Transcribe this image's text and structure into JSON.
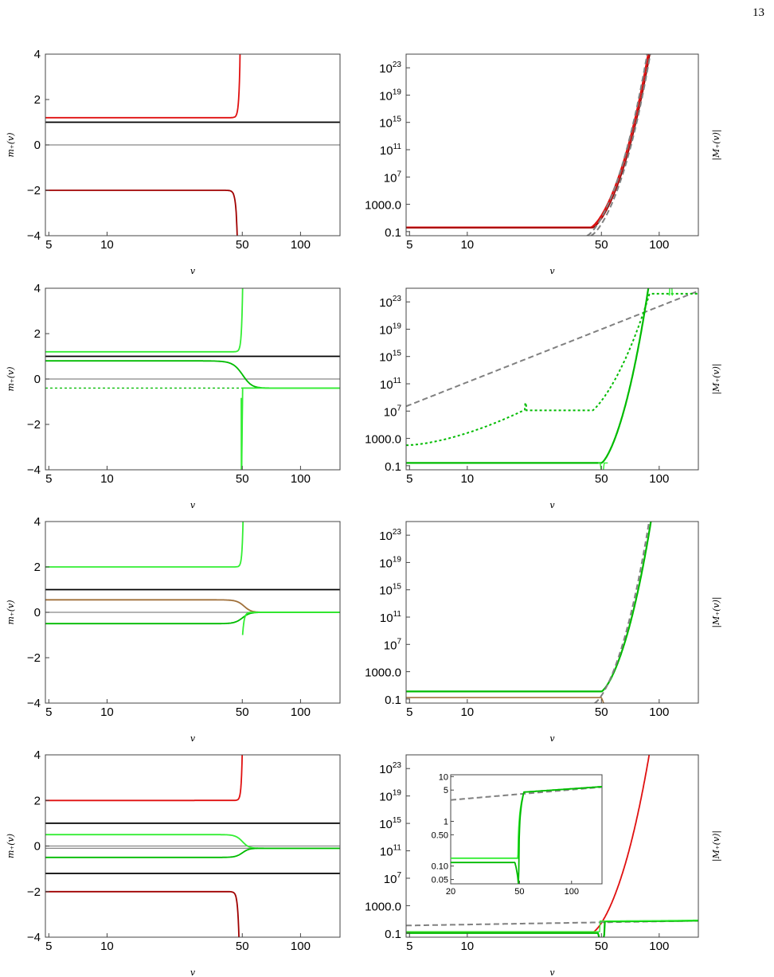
{
  "page_number": "13",
  "colors": {
    "black": "#000000",
    "gray_axis": "#888888",
    "red": "#e01010",
    "dark_red": "#a00000",
    "bright_green": "#33ee33",
    "green": "#00bb00",
    "brown": "#a0703a",
    "dashed_gray": "#808080"
  },
  "chart_data": [
    {
      "id": "row1-left",
      "type": "line",
      "xscale": "log",
      "xlim": [
        4.8,
        160
      ],
      "ylim": [
        -4,
        4
      ],
      "xticks": [
        "5",
        "10",
        "50",
        "100"
      ],
      "yticks": [
        "4",
        "2",
        "0",
        "−2",
        "−4"
      ],
      "xlabel": "v",
      "ylabel": "m₊(v)",
      "series": [
        {
          "color": "red",
          "description": "constant 1.2 until v≈45 then diverges up to +4 at v≈48"
        },
        {
          "color": "black",
          "values": 1.0
        },
        {
          "color": "gray",
          "values": 0.0
        },
        {
          "color": "dark_red",
          "description": "constant −2 until v≈43 then diverges down to −4 at v≈47"
        }
      ]
    },
    {
      "id": "row1-right",
      "type": "line",
      "xscale": "log",
      "yscale": "log",
      "xlim": [
        4.8,
        160
      ],
      "xticks": [
        "5",
        "10",
        "50",
        "100"
      ],
      "yticks": [
        "10^23",
        "10^19",
        "10^15",
        "10^11",
        "10^7",
        "1000.0",
        "0.1"
      ],
      "ylabel": "|M₊(v)|",
      "xlabel": "v",
      "series": [
        {
          "color": "red",
          "description": "≈0.4 flat, rising steeply after v≈45 to 10^25 at v≈120"
        },
        {
          "color": "dark_red"
        },
        {
          "color": "dashed_gray",
          "description": "asymptotic dashed lines"
        }
      ]
    },
    {
      "id": "row2-left",
      "type": "line",
      "xscale": "log",
      "xlim": [
        4.8,
        160
      ],
      "ylim": [
        -4,
        4
      ],
      "xticks": [
        "5",
        "10",
        "50",
        "100"
      ],
      "yticks": [
        "4",
        "2",
        "0",
        "−2",
        "−4"
      ],
      "xlabel": "v",
      "ylabel": "m₊(v)",
      "series": [
        {
          "color": "bright_green",
          "description": "1.2 then up to +4 at v≈49"
        },
        {
          "color": "black",
          "values": 1.0
        },
        {
          "color": "green",
          "description": "0.8 then drops to −0.4 near v≈50"
        },
        {
          "color": "gray",
          "values": 0.0
        },
        {
          "color": "green",
          "style": "dotted",
          "values": -0.4
        },
        {
          "color": "bright_green",
          "description": "from −4 at v≈49 rising to −0.4"
        }
      ]
    },
    {
      "id": "row2-right",
      "type": "line",
      "xscale": "log",
      "yscale": "log",
      "xlim": [
        4.8,
        160
      ],
      "xticks": [
        "5",
        "10",
        "50",
        "100"
      ],
      "yticks": [
        "10^23",
        "10^19",
        "10^15",
        "10^11",
        "10^7",
        "1000.0",
        "0.1"
      ],
      "ylabel": "|M₊(v)|",
      "xlabel": "v",
      "series": [
        {
          "color": "dashed_gray",
          "description": "straight line from ~10^8 at v=5 to ~10^25 at v=160"
        },
        {
          "color": "green",
          "style": "dotted",
          "description": "100 at v=5, peak ~10^8 at v≈20, flat ~10^7 until 45, rising to 10^24 at 120"
        },
        {
          "color": "green",
          "description": "≈0.3 flat until 50, then rising to 10^24"
        },
        {
          "color": "bright_green",
          "description": "spikes near v≈50 and v≈115"
        }
      ]
    },
    {
      "id": "row3-left",
      "type": "line",
      "xscale": "log",
      "xlim": [
        4.8,
        160
      ],
      "ylim": [
        -4,
        4
      ],
      "xticks": [
        "5",
        "10",
        "50",
        "100"
      ],
      "yticks": [
        "4",
        "2",
        "0",
        "−2",
        "−4"
      ],
      "xlabel": "v",
      "ylabel": "m₊(v)",
      "series": [
        {
          "color": "bright_green",
          "description": "2.0 then up to +4 at v≈49"
        },
        {
          "color": "black",
          "values": 1.0
        },
        {
          "color": "brown",
          "description": "0.55 then to 0 near v≈50"
        },
        {
          "color": "gray",
          "values": 0.0
        },
        {
          "color": "green",
          "description": "−0.5 then to 0 near v≈50"
        },
        {
          "color": "bright_green",
          "description": "from −4 at v≈49 rising to 0"
        }
      ]
    },
    {
      "id": "row3-right",
      "type": "line",
      "xscale": "log",
      "yscale": "log",
      "xlim": [
        4.8,
        160
      ],
      "xticks": [
        "5",
        "10",
        "50",
        "100"
      ],
      "yticks": [
        "10^23",
        "10^19",
        "10^15",
        "10^11",
        "10^7",
        "1000.0",
        "0.1"
      ],
      "ylabel": "|M₊(v)|",
      "xlabel": "v",
      "series": [
        {
          "color": "green",
          "description": "≈1 flat until 50, rising to 10^25"
        },
        {
          "color": "brown",
          "description": "≈0.1 flat, dips at v≈50"
        },
        {
          "color": "dashed_gray",
          "description": "asymptote"
        }
      ]
    },
    {
      "id": "row4-left",
      "type": "line",
      "xscale": "log",
      "xlim": [
        4.8,
        160
      ],
      "ylim": [
        -4,
        4
      ],
      "xticks": [
        "5",
        "10",
        "50",
        "100"
      ],
      "yticks": [
        "4",
        "2",
        "0",
        "−2",
        "−4"
      ],
      "xlabel": "v",
      "ylabel": "m₊(v)",
      "series": [
        {
          "color": "red",
          "description": "2.0 then up to +4 at v≈48"
        },
        {
          "color": "black",
          "values": 1.0
        },
        {
          "color": "bright_green",
          "description": "0.5 then to −0.1 near v≈50"
        },
        {
          "color": "gray",
          "values": 0.0
        },
        {
          "color": "gray",
          "values": -0.1
        },
        {
          "color": "green",
          "description": "−0.5 then to −0.1 near v≈50"
        },
        {
          "color": "black",
          "values": -1.2
        },
        {
          "color": "dark_red",
          "description": "−2 then down to −4 at v≈48"
        }
      ]
    },
    {
      "id": "row4-right",
      "type": "line",
      "xscale": "log",
      "yscale": "log",
      "xlim": [
        4.8,
        160
      ],
      "xticks": [
        "5",
        "10",
        "50",
        "100"
      ],
      "yticks": [
        "10^23",
        "10^19",
        "10^15",
        "10^11",
        "10^7",
        "1000.0",
        "0.1"
      ],
      "ylabel": "|M₊(v)|",
      "xlabel": "v",
      "series": [
        {
          "color": "red",
          "description": "≈0.2 flat, rising after v≈45 to 10^25 at v≈120"
        },
        {
          "color": "dashed_gray",
          "description": "≈1 at v=5 rising gently to ~5 at 160"
        },
        {
          "color": "green",
          "description": "≈0.1, dip at v≈50, then ≈5"
        }
      ],
      "inset": {
        "xlim": [
          20,
          150
        ],
        "xticks": [
          "20",
          "50",
          "100"
        ],
        "yticks": [
          "10",
          "5",
          "1",
          "0.50",
          "0.10",
          "0.05"
        ],
        "series": [
          {
            "color": "dashed_gray",
            "description": "≈3 at v=20 rising to ≈6 at v=150"
          },
          {
            "color": "bright_green",
            "description": "≈0.15 until v≈48, jump to ≈4.5 at v≈52, rising to ≈6"
          },
          {
            "color": "green",
            "description": "≈0.12 with dip at v≈48, jump to ≈4.5"
          }
        ]
      }
    }
  ]
}
